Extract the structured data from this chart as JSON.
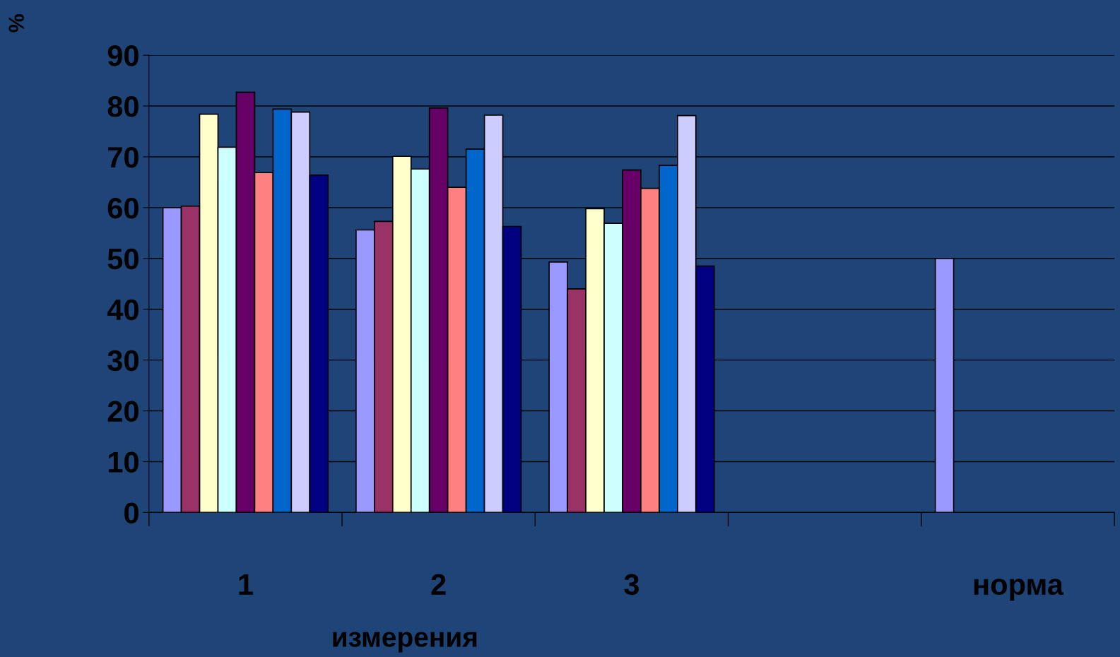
{
  "chart_data": {
    "type": "bar",
    "xlabel": "измерения",
    "ylabel": "%",
    "categories": [
      "1",
      "2",
      "3",
      null,
      "норма"
    ],
    "series": [
      {
        "color": "#9999ff",
        "values": [
          60,
          55.6,
          49.3,
          null,
          50
        ]
      },
      {
        "color": "#993366",
        "values": [
          60.3,
          57.3,
          44,
          null,
          null
        ]
      },
      {
        "color": "#ffffcc",
        "values": [
          78.4,
          70.1,
          59.8,
          null,
          null
        ]
      },
      {
        "color": "#ccffff",
        "values": [
          71.9,
          67.6,
          56.9,
          null,
          null
        ]
      },
      {
        "color": "#660066",
        "values": [
          82.7,
          79.6,
          67.4,
          null,
          null
        ]
      },
      {
        "color": "#ff8080",
        "values": [
          66.9,
          64,
          63.8,
          null,
          null
        ]
      },
      {
        "color": "#0066cc",
        "values": [
          79.4,
          71.5,
          68.3,
          null,
          null
        ]
      },
      {
        "color": "#ccccff",
        "values": [
          78.8,
          78.2,
          78.1,
          null,
          null
        ]
      },
      {
        "color": "#000080",
        "values": [
          66.4,
          56.3,
          48.5,
          null,
          null
        ]
      }
    ],
    "ylim": [
      0,
      90
    ],
    "yticks": [
      0,
      10,
      20,
      30,
      40,
      50,
      60,
      70,
      80,
      90
    ],
    "grid": "y"
  }
}
